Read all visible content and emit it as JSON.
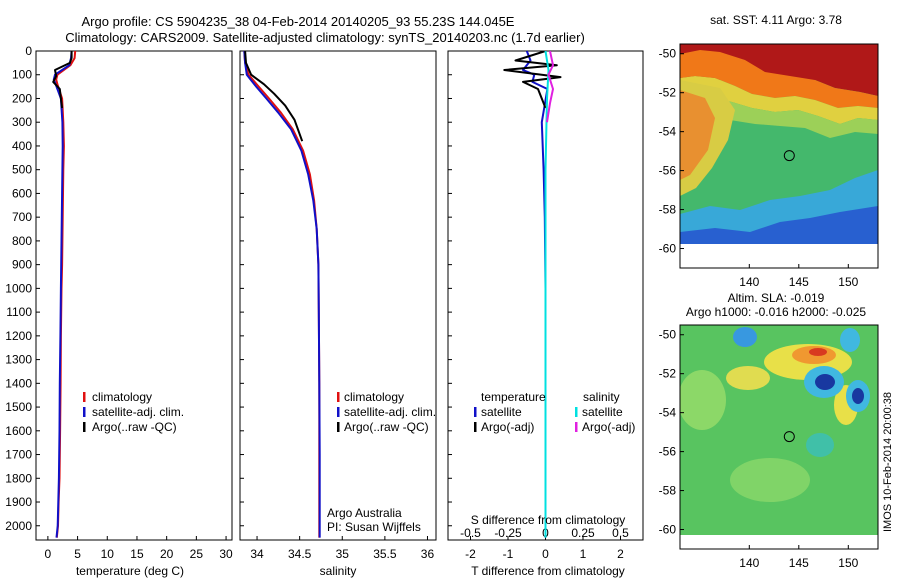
{
  "header": {
    "title_line1": "Argo profile: CS 5904235_38 04-Feb-2014 20140205_93 55.23S 144.045E",
    "title_line2": "Climatology: CARS2009. Satellite-adjusted climatology: synTS_20140203.nc (1.7d earlier)"
  },
  "side_stamp": "IMOS 10-Feb-2014 20:00:38",
  "chart_data": [
    {
      "id": "temperature",
      "type": "line",
      "xlabel": "temperature (deg C)",
      "ylabel": "",
      "xlim": [
        -2,
        31
      ],
      "ylim": [
        2060,
        0
      ],
      "y_reversed": true,
      "xticks": [
        0,
        5,
        10,
        15,
        20,
        25,
        30
      ],
      "yticks": [
        0,
        100,
        200,
        300,
        400,
        500,
        600,
        700,
        800,
        900,
        1000,
        1100,
        1200,
        1300,
        1400,
        1500,
        1600,
        1700,
        1800,
        1900,
        2000
      ],
      "legend": {
        "position": "lower-center",
        "entries": [
          "climatology",
          "satellite-adj. clim.",
          "Argo(..raw -QC)"
        ]
      },
      "series": [
        {
          "name": "climatology",
          "color": "#e01010",
          "x": [
            4.6,
            4.5,
            3.8,
            1.6,
            1.4,
            1.6,
            2.4,
            2.6,
            2.7,
            2.6,
            2.55,
            2.5,
            2.45,
            2.4,
            2.3,
            2.2,
            2.15,
            2.05,
            1.95,
            1.8,
            1.7,
            1.5
          ],
          "y": [
            0,
            30,
            60,
            100,
            120,
            140,
            200,
            300,
            400,
            500,
            600,
            700,
            800,
            900,
            1000,
            1200,
            1400,
            1600,
            1800,
            1900,
            2000,
            2050
          ]
        },
        {
          "name": "satellite-adj. clim.",
          "color": "#1010c8",
          "x": [
            4.0,
            3.9,
            3.6,
            1.2,
            1.0,
            1.3,
            2.2,
            2.45,
            2.5,
            2.45,
            2.4,
            2.35,
            2.3,
            2.25,
            2.2,
            2.1,
            2.0,
            1.95,
            1.85,
            1.75,
            1.65,
            1.45
          ],
          "y": [
            0,
            30,
            60,
            100,
            120,
            140,
            200,
            300,
            400,
            500,
            600,
            700,
            800,
            900,
            1000,
            1200,
            1400,
            1600,
            1800,
            1900,
            2000,
            2050
          ]
        },
        {
          "name": "Argo(..raw -QC)",
          "color": "#000000",
          "x": [
            4.0,
            4.0,
            3.7,
            1.2,
            1.4,
            0.9,
            2.0,
            2.2,
            2.4
          ],
          "y": [
            0,
            30,
            50,
            80,
            105,
            130,
            160,
            200,
            240
          ]
        }
      ]
    },
    {
      "id": "salinity",
      "type": "line",
      "xlabel": "salinity",
      "ylabel": "",
      "xlim": [
        33.8,
        36.1
      ],
      "ylim": [
        2060,
        0
      ],
      "y_reversed": true,
      "xticks": [
        34,
        34.5,
        35,
        35.5,
        36
      ],
      "xticklabels": [
        "34",
        "34.5",
        "35",
        "35.5",
        "36"
      ],
      "legend": {
        "position": "lower-center",
        "entries": [
          "climatology",
          "satellite-adj. clim.",
          "Argo(..raw -QC)"
        ]
      },
      "annotation": [
        "Argo Australia",
        "PI: Susan Wijffels"
      ],
      "series": [
        {
          "name": "climatology",
          "color": "#e01010",
          "x": [
            33.85,
            33.86,
            33.9,
            34.02,
            34.14,
            34.28,
            34.42,
            34.54,
            34.62,
            34.67,
            34.7,
            34.72,
            34.725,
            34.73,
            34.73,
            34.73,
            34.73
          ],
          "y": [
            0,
            50,
            100,
            150,
            200,
            260,
            330,
            420,
            520,
            630,
            750,
            900,
            1100,
            1400,
            1700,
            2000,
            2050
          ]
        },
        {
          "name": "satellite-adj. clim.",
          "color": "#1010c8",
          "x": [
            33.85,
            33.86,
            33.88,
            33.99,
            34.11,
            34.25,
            34.4,
            34.52,
            34.6,
            34.66,
            34.7,
            34.72,
            34.725,
            34.73,
            34.735,
            34.735,
            34.735
          ],
          "y": [
            0,
            50,
            100,
            150,
            200,
            260,
            330,
            420,
            520,
            630,
            750,
            900,
            1100,
            1400,
            1700,
            2000,
            2050
          ]
        },
        {
          "name": "Argo(..raw -QC)",
          "color": "#000000",
          "x": [
            33.86,
            33.87,
            33.93,
            34.08,
            34.2,
            34.33,
            34.44,
            34.53
          ],
          "y": [
            0,
            50,
            100,
            140,
            180,
            230,
            290,
            380
          ]
        }
      ]
    },
    {
      "id": "difference",
      "type": "line",
      "xlabel": "T difference from climatology",
      "top_label": "S difference from climatology",
      "xlim": [
        -2.6,
        2.6
      ],
      "ylim": [
        2060,
        0
      ],
      "y_reversed": true,
      "xticks": [
        -2,
        -1,
        0,
        1,
        2
      ],
      "s_xticks": [
        -0.5,
        -0.25,
        0,
        0.25,
        0.5
      ],
      "s_xticklabels": [
        "-0.5",
        "-0.25",
        "0",
        "0.25",
        "0.5"
      ],
      "s_scale_factor": 4,
      "legend": {
        "position": "lower-center",
        "headers": [
          "temperature",
          "salinity"
        ],
        "entries": [
          "satellite",
          "Argo(-adj)",
          "satellite",
          "Argo(-adj)"
        ]
      },
      "series": [
        {
          "name": "satellite",
          "quantity": "temperature",
          "color": "#1010c8",
          "x": [
            -0.5,
            -0.4,
            -0.6,
            -0.3,
            -0.35,
            0.05,
            -0.1,
            -0.05,
            -0.02,
            0.0,
            0.0
          ],
          "y": [
            0,
            40,
            80,
            100,
            130,
            160,
            300,
            500,
            700,
            1000,
            2050
          ]
        },
        {
          "name": "Argo(-adj)",
          "quantity": "temperature",
          "color": "#000000",
          "x": [
            0.0,
            -0.8,
            0.3,
            -1.1,
            0.4,
            -0.6,
            -0.2,
            0.0
          ],
          "y": [
            0,
            40,
            60,
            80,
            110,
            130,
            160,
            240
          ]
        },
        {
          "name": "satellite",
          "quantity": "salinity",
          "color": "#00e0e0",
          "x": [
            0.0,
            0.02,
            0.01,
            0.0,
            0.0,
            0.0,
            0.0
          ],
          "y": [
            0,
            80,
            200,
            500,
            1000,
            1900,
            2050
          ]
        },
        {
          "name": "Argo(-adj)",
          "quantity": "salinity",
          "color": "#e020e0",
          "x": [
            0.03,
            0.05,
            0.02,
            0.05,
            0.03,
            0.01
          ],
          "y": [
            0,
            60,
            100,
            160,
            220,
            300
          ]
        }
      ]
    },
    {
      "id": "sst_map",
      "type": "heatmap",
      "title": "sat. SST: 4.11  Argo: 3.78",
      "xlim": [
        133,
        153
      ],
      "ylim": [
        -61,
        -49.5
      ],
      "xticks": [
        140,
        145,
        150
      ],
      "yticks": [
        -50,
        -52,
        -54,
        -56,
        -58,
        -60
      ],
      "data_extent_lat": [
        -60,
        -49.5
      ],
      "marker": {
        "lon": 144.045,
        "lat": -55.23
      }
    },
    {
      "id": "sla_map",
      "type": "heatmap",
      "title": "Altim. SLA: -0.019",
      "subtitle": "Argo h1000: -0.016 h2000: -0.025",
      "xlim": [
        133,
        153
      ],
      "ylim": [
        -61,
        -49.5
      ],
      "xticks": [
        140,
        145,
        150
      ],
      "yticks": [
        -50,
        -52,
        -54,
        -56,
        -58,
        -60
      ],
      "data_extent_lat": [
        -60,
        -49.5
      ],
      "marker": {
        "lon": 144.045,
        "lat": -55.23
      }
    }
  ]
}
